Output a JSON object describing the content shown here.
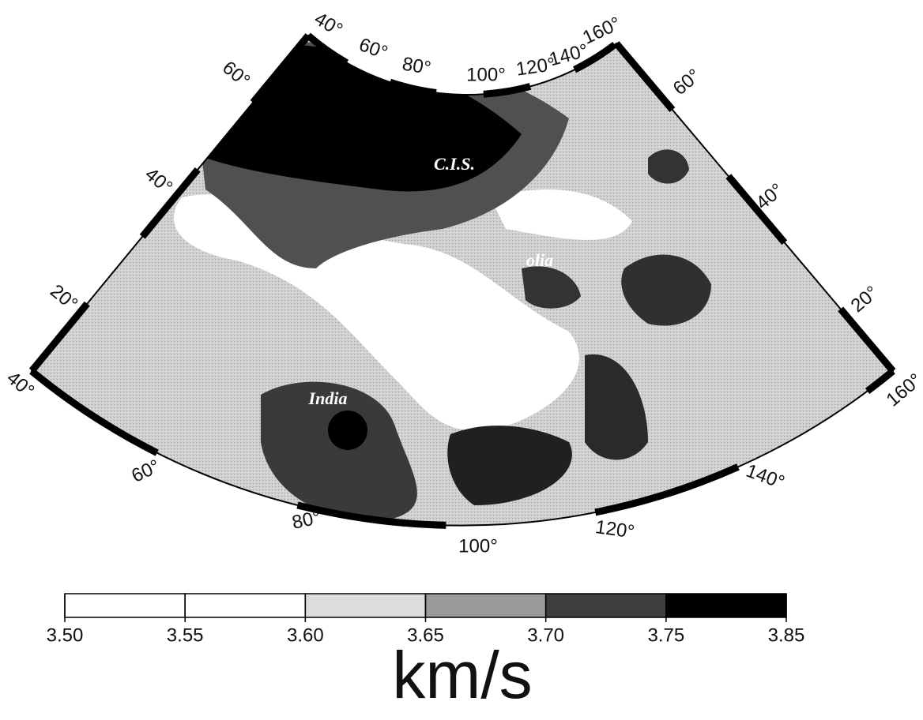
{
  "map": {
    "top_labels": [
      "40°",
      "60°",
      "80°",
      "100°",
      "120°",
      "140°",
      "160°"
    ],
    "left_labels": [
      "60°",
      "40°",
      "20°",
      "40°"
    ],
    "right_labels": [
      "60°",
      "40°",
      "20°",
      "160°"
    ],
    "bottom_labels": [
      "60°",
      "80°",
      "100°",
      "120°",
      "140°"
    ],
    "region_labels": [
      "C.I.S.",
      "India",
      "olia"
    ]
  },
  "colorbar": {
    "ticks": [
      {
        "value": 3.5,
        "label": "3.50"
      },
      {
        "value": 3.55,
        "label": "3.55"
      },
      {
        "value": 3.6,
        "label": "3.60"
      },
      {
        "value": 3.65,
        "label": "3.65"
      },
      {
        "value": 3.7,
        "label": "3.70"
      },
      {
        "value": 3.75,
        "label": "3.75"
      },
      {
        "value": 3.85,
        "label": "3.85"
      }
    ],
    "colors": [
      "#ffffff",
      "#ffffff",
      "#dcdcdc",
      "#9a9a9a",
      "#3e3e3e",
      "#000000"
    ],
    "unit": "km/s"
  }
}
